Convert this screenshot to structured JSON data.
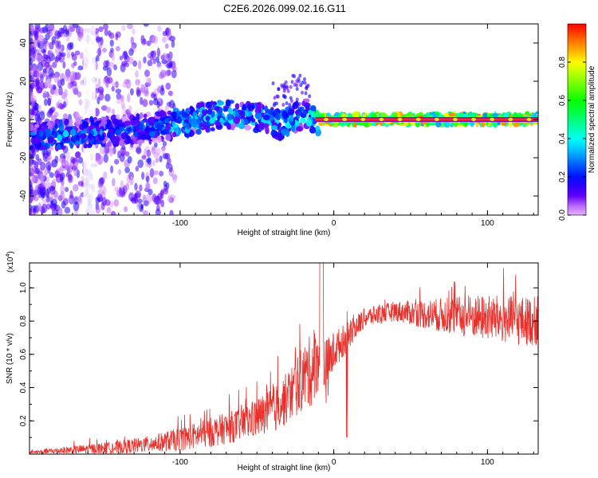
{
  "figure_title": "C2E6.2026.099.02.16.G11",
  "colors": {
    "snr_line": "#e8312c",
    "axis": "#000000",
    "background": "#ffffff"
  },
  "chart_data": [
    {
      "type": "heatmap",
      "name": "spectrogram",
      "title": "C2E6.2026.099.02.16.G11",
      "xlabel": "Height of straight line (km)",
      "ylabel": "Frequency (Hz)",
      "xlim": [
        -198,
        133
      ],
      "ylim": [
        -50,
        50
      ],
      "xticks": [
        -100,
        0,
        100
      ],
      "xtick_labels": [
        "-100",
        "0",
        "100"
      ],
      "yticks": [
        -40,
        -20,
        0,
        20,
        40
      ],
      "ytick_labels": [
        "-40",
        "-20",
        "0",
        "20",
        "40"
      ],
      "colorbar": {
        "label": "Normalized spectral amplitude",
        "range": [
          0,
          1
        ],
        "ticks": [
          0.0,
          0.2,
          0.4,
          0.6,
          0.8
        ],
        "tick_labels": [
          "0.0",
          "0.2",
          "0.4",
          "0.6",
          "0.8"
        ],
        "colormap": "rainbow"
      },
      "ridge": {
        "x": [
          -190,
          -175,
          -160,
          -145,
          -130,
          -115,
          -100,
          -85,
          -70,
          -55,
          -45,
          -35,
          -25,
          -18,
          -12,
          -8,
          0,
          20,
          50,
          80,
          100,
          120,
          133
        ],
        "freq": [
          -9,
          -8,
          -7,
          -6,
          -5,
          -4,
          -2,
          1,
          3,
          2,
          0,
          -3,
          1,
          3,
          0,
          0,
          0,
          0,
          0,
          0,
          0,
          0,
          0
        ],
        "amplitude": [
          0.35,
          0.4,
          0.38,
          0.3,
          0.3,
          0.35,
          0.45,
          0.45,
          0.5,
          0.42,
          0.4,
          0.4,
          0.5,
          0.45,
          0.6,
          0.95,
          0.95,
          0.95,
          0.95,
          0.95,
          0.95,
          0.95,
          0.95
        ]
      }
    },
    {
      "type": "line",
      "name": "snr",
      "xlabel": "Height of straight line (km)",
      "ylabel": "SNR (10 * v/v)",
      "y_multiplier": "(x10",
      "y_multiplier_exp": "4",
      "y_multiplier_close": ")",
      "xlim": [
        -198,
        133
      ],
      "ylim": [
        0,
        1.15
      ],
      "xticks": [
        -100,
        0,
        100
      ],
      "xtick_labels": [
        "-100",
        "0",
        "100"
      ],
      "yticks": [
        0.2,
        0.4,
        0.6,
        0.8,
        1.0
      ],
      "ytick_labels": [
        "0.2",
        "0.4",
        "0.6",
        "0.8",
        "1.0"
      ],
      "envelope": {
        "x": [
          -198,
          -180,
          -160,
          -140,
          -120,
          -100,
          -80,
          -60,
          -40,
          -30,
          -20,
          -15,
          -10,
          -8,
          -5,
          0,
          10,
          20,
          40,
          60,
          80,
          100,
          120,
          133
        ],
        "mean": [
          0.01,
          0.02,
          0.03,
          0.04,
          0.06,
          0.09,
          0.13,
          0.18,
          0.26,
          0.34,
          0.46,
          0.5,
          0.58,
          0.7,
          0.5,
          0.62,
          0.72,
          0.82,
          0.86,
          0.84,
          0.83,
          0.82,
          0.8,
          0.8
        ],
        "spread": [
          0.01,
          0.02,
          0.03,
          0.04,
          0.05,
          0.07,
          0.09,
          0.1,
          0.14,
          0.16,
          0.2,
          0.22,
          0.2,
          0.3,
          0.2,
          0.12,
          0.08,
          0.06,
          0.06,
          0.09,
          0.12,
          0.14,
          0.15,
          0.15
        ]
      }
    }
  ]
}
